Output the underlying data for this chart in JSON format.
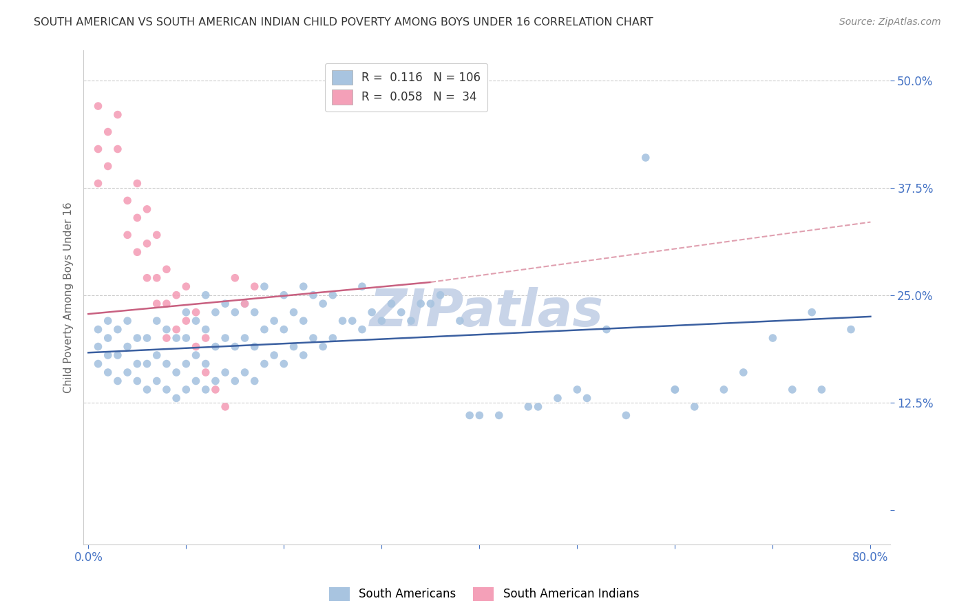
{
  "title": "SOUTH AMERICAN VS SOUTH AMERICAN INDIAN CHILD POVERTY AMONG BOYS UNDER 16 CORRELATION CHART",
  "source": "Source: ZipAtlas.com",
  "ylabel": "Child Poverty Among Boys Under 16",
  "x_ticks": [
    0.0,
    0.1,
    0.2,
    0.3,
    0.4,
    0.5,
    0.6,
    0.7,
    0.8
  ],
  "y_ticks": [
    0.0,
    0.125,
    0.25,
    0.375,
    0.5
  ],
  "y_tick_labels": [
    "",
    "12.5%",
    "25.0%",
    "37.5%",
    "50.0%"
  ],
  "xlim": [
    -0.005,
    0.82
  ],
  "ylim": [
    -0.04,
    0.535
  ],
  "series1_color": "#a8c4e0",
  "series2_color": "#f4a0b8",
  "trendline1_color": "#3a5fa0",
  "trendline2_color": "#c86080",
  "trendline2_dashed_color": "#e0a0b0",
  "watermark": "ZIPatlas",
  "watermark_color": "#c8d4e8",
  "legend_label1": "South Americans",
  "legend_label2": "South American Indians",
  "blue_scatter_x": [
    0.01,
    0.01,
    0.01,
    0.02,
    0.02,
    0.02,
    0.02,
    0.03,
    0.03,
    0.03,
    0.04,
    0.04,
    0.04,
    0.05,
    0.05,
    0.05,
    0.06,
    0.06,
    0.06,
    0.07,
    0.07,
    0.07,
    0.08,
    0.08,
    0.08,
    0.09,
    0.09,
    0.09,
    0.1,
    0.1,
    0.1,
    0.1,
    0.11,
    0.11,
    0.11,
    0.12,
    0.12,
    0.12,
    0.12,
    0.13,
    0.13,
    0.13,
    0.14,
    0.14,
    0.14,
    0.15,
    0.15,
    0.15,
    0.16,
    0.16,
    0.16,
    0.17,
    0.17,
    0.17,
    0.18,
    0.18,
    0.18,
    0.19,
    0.19,
    0.2,
    0.2,
    0.2,
    0.21,
    0.21,
    0.22,
    0.22,
    0.22,
    0.23,
    0.23,
    0.24,
    0.24,
    0.25,
    0.25,
    0.26,
    0.27,
    0.28,
    0.28,
    0.29,
    0.3,
    0.31,
    0.32,
    0.33,
    0.34,
    0.35,
    0.36,
    0.38,
    0.39,
    0.4,
    0.42,
    0.45,
    0.46,
    0.48,
    0.5,
    0.51,
    0.53,
    0.55,
    0.57,
    0.6,
    0.65,
    0.7,
    0.72,
    0.74,
    0.75,
    0.78,
    0.6,
    0.62,
    0.67
  ],
  "blue_scatter_y": [
    0.17,
    0.19,
    0.21,
    0.16,
    0.18,
    0.2,
    0.22,
    0.15,
    0.18,
    0.21,
    0.16,
    0.19,
    0.22,
    0.15,
    0.17,
    0.2,
    0.14,
    0.17,
    0.2,
    0.15,
    0.18,
    0.22,
    0.14,
    0.17,
    0.21,
    0.13,
    0.16,
    0.2,
    0.14,
    0.17,
    0.2,
    0.23,
    0.15,
    0.18,
    0.22,
    0.14,
    0.17,
    0.21,
    0.25,
    0.15,
    0.19,
    0.23,
    0.16,
    0.2,
    0.24,
    0.15,
    0.19,
    0.23,
    0.16,
    0.2,
    0.24,
    0.15,
    0.19,
    0.23,
    0.17,
    0.21,
    0.26,
    0.18,
    0.22,
    0.17,
    0.21,
    0.25,
    0.19,
    0.23,
    0.18,
    0.22,
    0.26,
    0.2,
    0.25,
    0.19,
    0.24,
    0.2,
    0.25,
    0.22,
    0.22,
    0.21,
    0.26,
    0.23,
    0.22,
    0.24,
    0.23,
    0.22,
    0.24,
    0.24,
    0.25,
    0.22,
    0.11,
    0.11,
    0.11,
    0.12,
    0.12,
    0.13,
    0.14,
    0.13,
    0.21,
    0.11,
    0.41,
    0.14,
    0.14,
    0.2,
    0.14,
    0.23,
    0.14,
    0.21,
    0.14,
    0.12,
    0.16
  ],
  "pink_scatter_x": [
    0.01,
    0.01,
    0.01,
    0.02,
    0.02,
    0.03,
    0.03,
    0.04,
    0.04,
    0.05,
    0.05,
    0.05,
    0.06,
    0.06,
    0.06,
    0.07,
    0.07,
    0.07,
    0.08,
    0.08,
    0.08,
    0.09,
    0.09,
    0.1,
    0.1,
    0.11,
    0.11,
    0.12,
    0.12,
    0.13,
    0.14,
    0.15,
    0.16,
    0.17
  ],
  "pink_scatter_y": [
    0.47,
    0.42,
    0.38,
    0.44,
    0.4,
    0.46,
    0.42,
    0.36,
    0.32,
    0.38,
    0.34,
    0.3,
    0.35,
    0.31,
    0.27,
    0.32,
    0.27,
    0.24,
    0.28,
    0.24,
    0.2,
    0.25,
    0.21,
    0.26,
    0.22,
    0.23,
    0.19,
    0.2,
    0.16,
    0.14,
    0.12,
    0.27,
    0.24,
    0.26
  ],
  "trendline1_x_start": 0.0,
  "trendline1_x_end": 0.8,
  "trendline1_y_start": 0.183,
  "trendline1_y_end": 0.225,
  "trendline2_solid_x_start": 0.0,
  "trendline2_solid_x_end": 0.35,
  "trendline2_solid_y_start": 0.228,
  "trendline2_solid_y_end": 0.265,
  "trendline2_dashed_x_start": 0.35,
  "trendline2_dashed_x_end": 0.8,
  "trendline2_dashed_y_start": 0.265,
  "trendline2_dashed_y_end": 0.335,
  "background_color": "#ffffff",
  "grid_color": "#cccccc",
  "title_color": "#333333",
  "source_color": "#888888",
  "marker_size": 70
}
